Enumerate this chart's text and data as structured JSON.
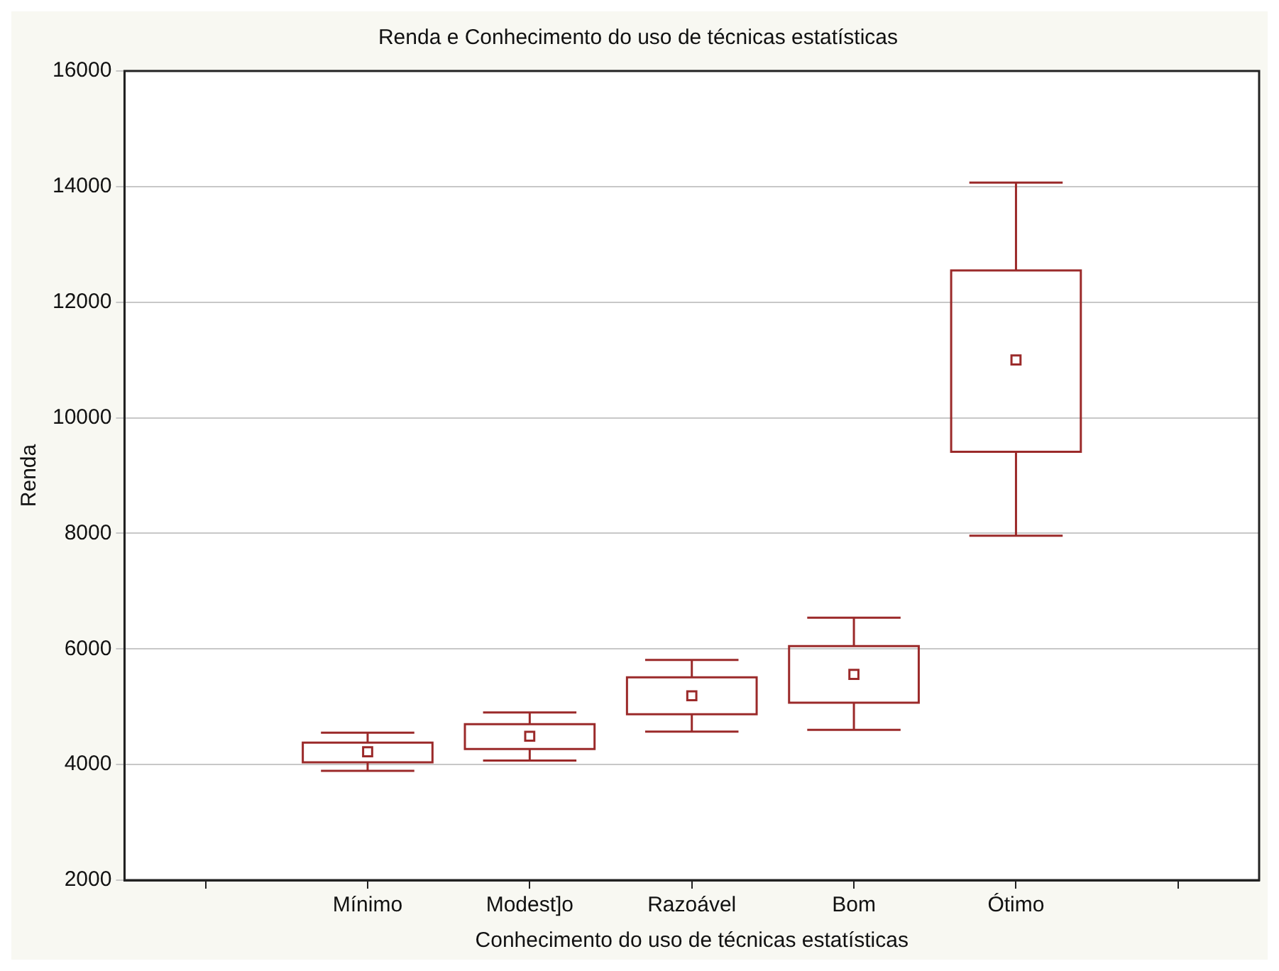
{
  "chart_data": {
    "type": "box",
    "title": "Renda e Conhecimento do uso de técnicas estatísticas",
    "xlabel": "Conhecimento do uso de técnicas estatísticas",
    "ylabel": "Renda",
    "categories": [
      "Mínimo",
      "Modest]o",
      "Razoável",
      "Bom",
      "Ótimo"
    ],
    "color": "#9b2a2a",
    "boxes": [
      {
        "low": 3890,
        "q1": 4040,
        "median": 4220,
        "q3": 4380,
        "high": 4550
      },
      {
        "low": 4070,
        "q1": 4270,
        "median": 4490,
        "q3": 4700,
        "high": 4900
      },
      {
        "low": 4570,
        "q1": 4870,
        "median": 5190,
        "q3": 5510,
        "high": 5810
      },
      {
        "low": 4600,
        "q1": 5070,
        "median": 5560,
        "q3": 6050,
        "high": 6540
      },
      {
        "low": 7960,
        "q1": 9410,
        "median": 11000,
        "q3": 12550,
        "high": 14070
      }
    ],
    "ylim": [
      2000,
      16000
    ],
    "yticks": [
      2000,
      4000,
      6000,
      8000,
      10000,
      12000,
      14000,
      16000
    ],
    "grid": "y",
    "legend": false,
    "marker": "square"
  }
}
